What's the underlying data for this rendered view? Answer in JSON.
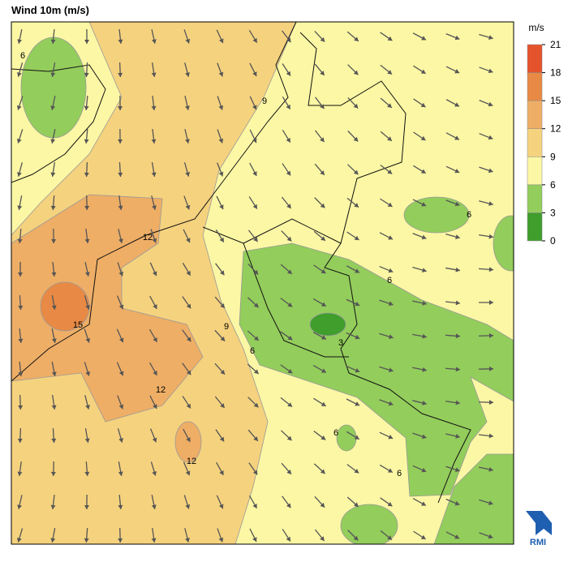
{
  "title": "Wind 10m (m/s)",
  "colorbar": {
    "unit": "m/s",
    "ticks": [
      0,
      3,
      6,
      9,
      12,
      15,
      18,
      21
    ],
    "colors": [
      "#3f9e2c",
      "#93cd5c",
      "#fcf7a4",
      "#f5d27e",
      "#eeae66",
      "#e88a45",
      "#e4532c"
    ]
  },
  "contour_labels": [
    6,
    9,
    12,
    15,
    9,
    6,
    12,
    12,
    6,
    3,
    6,
    6,
    6
  ],
  "logo": "RMI"
}
